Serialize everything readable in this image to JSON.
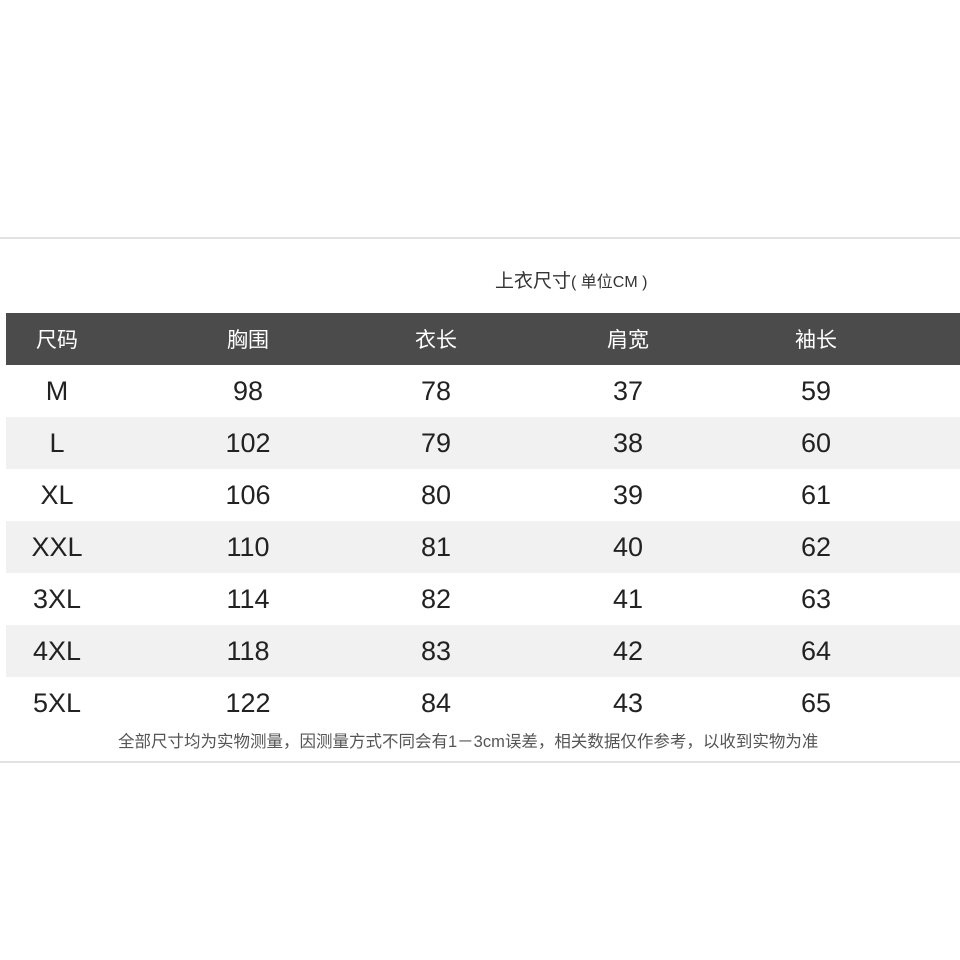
{
  "title": {
    "main": "上衣尺寸",
    "unit": "( 单位CM )"
  },
  "table": {
    "headers": [
      "尺码",
      "胸围",
      "衣长",
      "肩宽",
      "袖长"
    ],
    "rows": [
      [
        "M",
        "98",
        "78",
        "37",
        "59"
      ],
      [
        "L",
        "102",
        "79",
        "38",
        "60"
      ],
      [
        "XL",
        "106",
        "80",
        "39",
        "61"
      ],
      [
        "XXL",
        "110",
        "81",
        "40",
        "62"
      ],
      [
        "3XL",
        "114",
        "82",
        "41",
        "63"
      ],
      [
        "4XL",
        "118",
        "83",
        "42",
        "64"
      ],
      [
        "5XL",
        "122",
        "84",
        "43",
        "65"
      ]
    ]
  },
  "note": "全部尺寸均为实物测量，因测量方式不同会有1－3cm误差，相关数据仅作参考，以收到实物为准",
  "colors": {
    "header_bg": "#4b4b4b",
    "alt_row_bg": "#f1f1f1"
  }
}
